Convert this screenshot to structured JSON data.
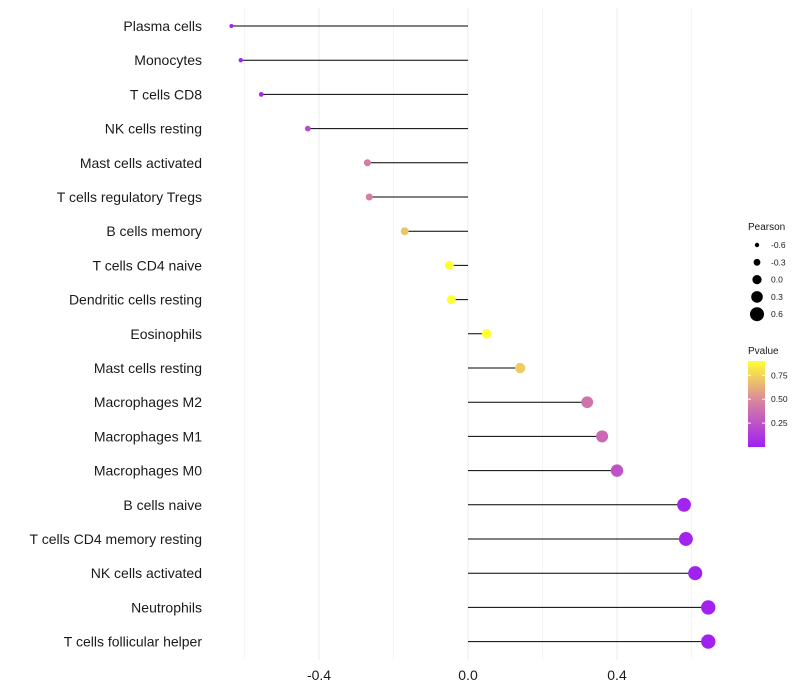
{
  "chart_data": {
    "type": "lollipop",
    "title": "",
    "xlabel": "",
    "ylabel": "",
    "xlim": [
      -0.67,
      0.78
    ],
    "xticks": [
      -0.4,
      0.0,
      0.4
    ],
    "xtick_labels": [
      "-0.4",
      "0.0",
      "0.4"
    ],
    "grid": "vertical major and minor lines",
    "categories": [
      "Plasma cells",
      "Monocytes",
      "T cells CD8",
      "NK cells resting",
      "Mast cells activated",
      "T cells regulatory  Tregs",
      "B cells memory",
      "T cells CD4 naive",
      "Dendritic cells resting",
      "Eosinophils",
      "Mast cells resting",
      "Macrophages M2",
      "Macrophages M1",
      "Macrophages M0",
      "B cells naive",
      "T cells CD4 memory resting",
      "NK cells activated",
      "Neutrophils",
      "T cells follicular helper"
    ],
    "pearson": [
      -0.635,
      -0.61,
      -0.555,
      -0.43,
      -0.27,
      -0.265,
      -0.17,
      -0.05,
      -0.045,
      0.05,
      0.14,
      0.32,
      0.36,
      0.4,
      0.58,
      0.585,
      0.61,
      0.645,
      0.645
    ],
    "pvalue": [
      0.02,
      0.03,
      0.05,
      0.2,
      0.45,
      0.45,
      0.7,
      0.97,
      0.98,
      0.97,
      0.72,
      0.4,
      0.35,
      0.25,
      0.02,
      0.02,
      0.01,
      0.01,
      0.01
    ],
    "size_legend": {
      "title": "Pearson",
      "values": [
        -0.6,
        -0.3,
        0.0,
        0.3,
        0.6
      ],
      "labels": [
        "-0.6",
        "-0.3",
        "0.0",
        "0.3",
        "0.6"
      ]
    },
    "color_legend": {
      "title": "Pvalue",
      "breaks": [
        0.25,
        0.5,
        0.75
      ],
      "labels": [
        "0.25",
        "0.50",
        "0.75"
      ],
      "range": [
        0.0,
        0.9
      ],
      "low_color": "#a020f0",
      "mid_color": "#d67ca6",
      "high_color": "#ffff33"
    },
    "legend_position": "right"
  }
}
